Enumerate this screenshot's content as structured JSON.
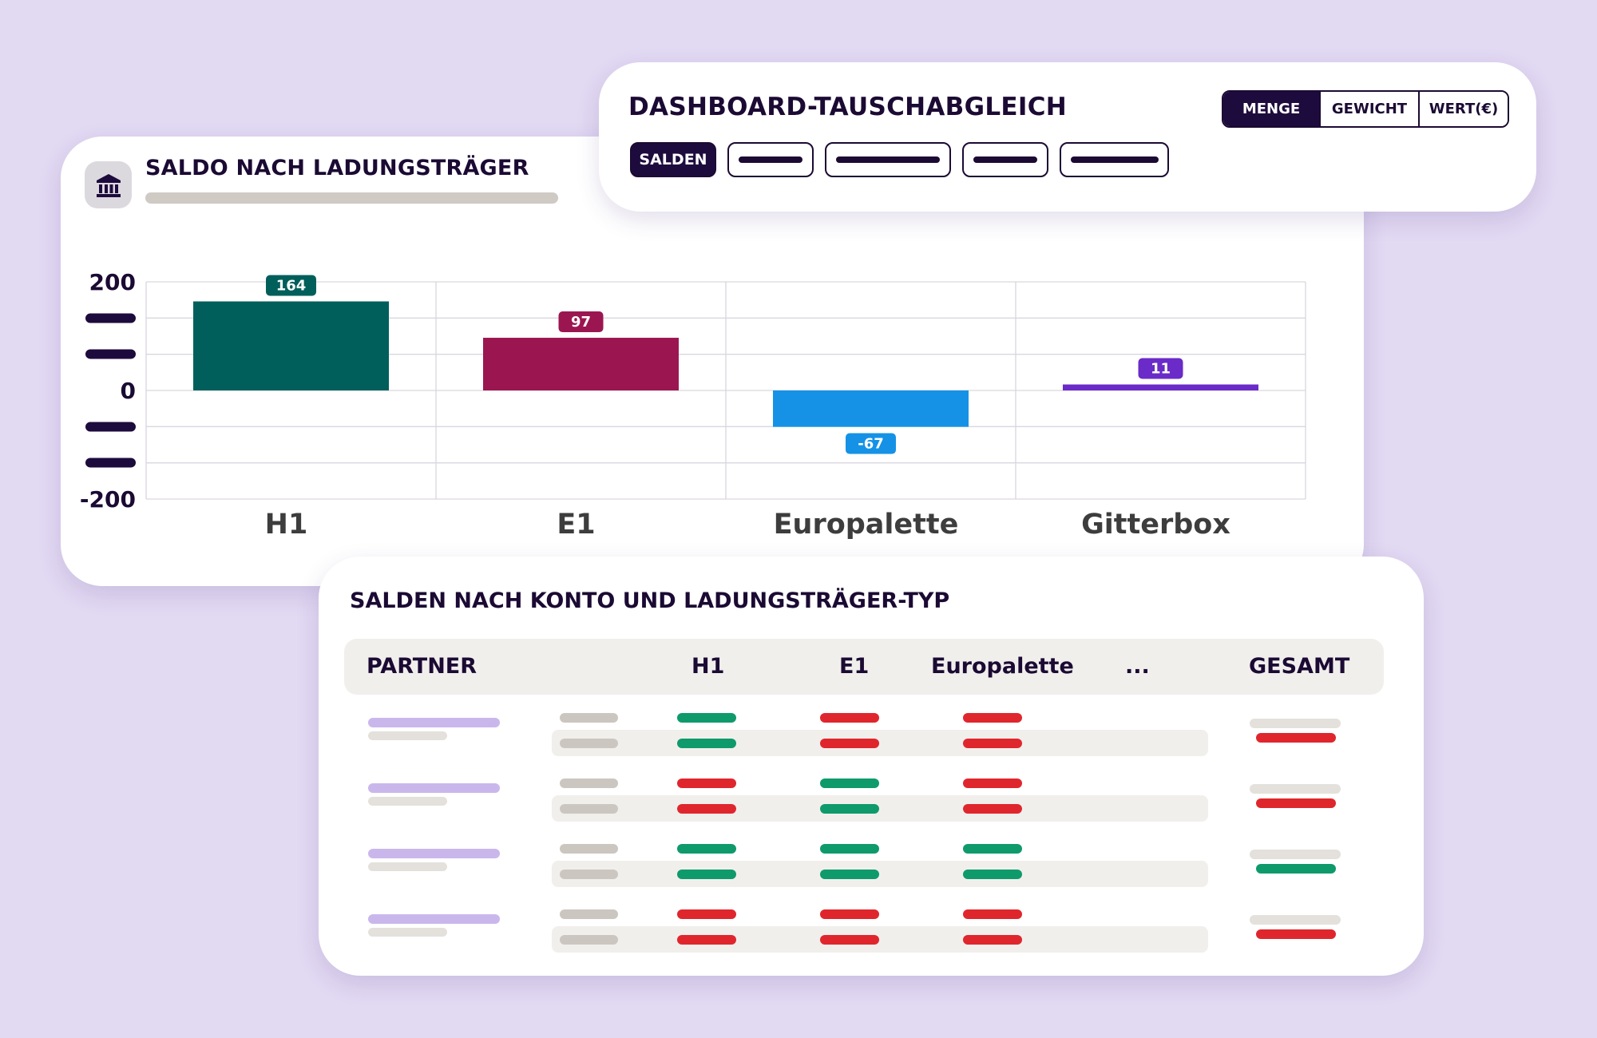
{
  "chart_card": {
    "title": "SALDO NACH LADUNGSTRÄGER",
    "icon": "bank-icon"
  },
  "chart_data": {
    "type": "bar",
    "categories": [
      "H1",
      "E1",
      "Europalette",
      "Gitterbox"
    ],
    "values": [
      164,
      97,
      -67,
      11
    ],
    "colors": [
      "#005f5b",
      "#9b1650",
      "#1592e6",
      "#6a2bc8"
    ],
    "ylim": [
      -200,
      200
    ],
    "ytick_labels": [
      {
        "value": 200,
        "label": "200"
      },
      {
        "value": 0,
        "label": "0"
      },
      {
        "value": -200,
        "label": "-200"
      }
    ],
    "grid": true
  },
  "dashboard": {
    "title": "DASHBOARD-TAUSCHABGLEICH",
    "units": [
      "MENGE",
      "GEWICHT",
      "WERT(€)"
    ],
    "active_unit": "MENGE",
    "tabs": [
      "SALDEN",
      "",
      "",
      "",
      ""
    ],
    "active_tab": "SALDEN"
  },
  "table": {
    "title": "SALDEN NACH KONTO UND LADUNGSTRÄGER-TYP",
    "columns": [
      "PARTNER",
      "H1",
      "E1",
      "Europalette",
      "...",
      "GESAMT"
    ],
    "rows": [
      {
        "cells": [
          [
            "g",
            "r",
            "r"
          ],
          [
            "g",
            "r",
            "r"
          ]
        ],
        "total": "r"
      },
      {
        "cells": [
          [
            "r",
            "g",
            "r"
          ],
          [
            "r",
            "g",
            "r"
          ]
        ],
        "total": "r"
      },
      {
        "cells": [
          [
            "g",
            "g",
            "g"
          ],
          [
            "g",
            "g",
            "g"
          ]
        ],
        "total": "g"
      },
      {
        "cells": [
          [
            "r",
            "r",
            "r"
          ],
          [
            "r",
            "r",
            "r"
          ]
        ],
        "total": "r"
      }
    ]
  }
}
